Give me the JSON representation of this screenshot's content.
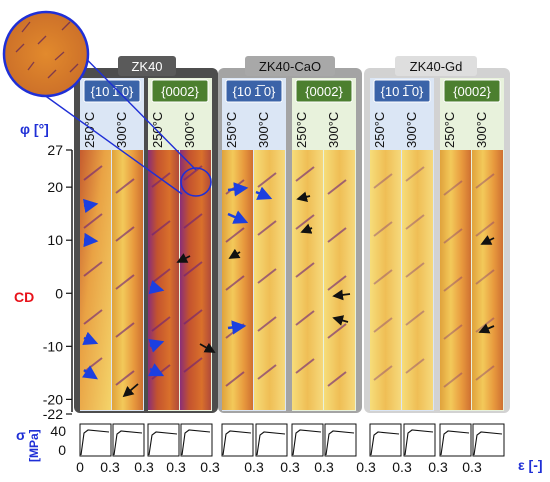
{
  "groups": [
    {
      "name": "ZK40",
      "tag_color": "#5a5a5a",
      "bg": "#4d4d4d"
    },
    {
      "name": "ZK40-CaO",
      "tag_color": "#a8a8a8",
      "bg": "#a4a4a4"
    },
    {
      "name": "ZK40-Gd",
      "tag_color": "#dedede",
      "bg": "#d2d2d2"
    }
  ],
  "planes": [
    {
      "label": "{10 1̅ 0}",
      "header_color": "#3b63a8",
      "panel_bg": "#dbe6f5"
    },
    {
      "label": "{0002}",
      "header_color": "#4c7f2f",
      "panel_bg": "#e8f2dc"
    }
  ],
  "temperatures": [
    "250°C",
    "300°C"
  ],
  "y_axis": {
    "label": "φ [°]",
    "ticks": [
      "27",
      "20",
      "10",
      "0",
      "-10",
      "-20",
      "-22"
    ],
    "cd_label": "CD"
  },
  "stress_axis": {
    "label_sigma": "σ",
    "label_unit": "[MPa]",
    "ticks": [
      "40",
      "0"
    ]
  },
  "strain_axis": {
    "label": "ε [-]",
    "ticks": [
      "0",
      "0.3",
      "0.3",
      "0.3",
      "0.3",
      "0.3",
      "0.3",
      "0.3",
      "0.3",
      "0.3",
      "0.3",
      "0.3",
      "0.3"
    ]
  },
  "colors": {
    "map_light": "#f2cf5a",
    "map_mid": "#d9752a",
    "map_dark": "#6b1f7a",
    "arrow_blue": "#1c3fe0",
    "arrow_black": "#111111",
    "axis_blue": "#1f2fd6",
    "cd_red": "#e8121a"
  }
}
